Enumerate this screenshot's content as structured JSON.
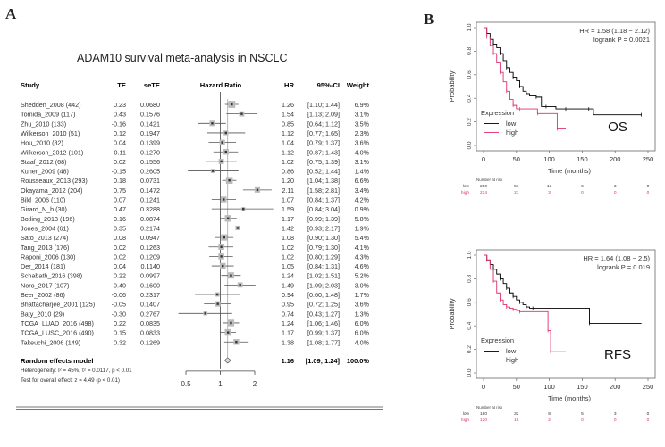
{
  "panels": {
    "a_label": "A",
    "b_label": "B"
  },
  "chart_data": [
    {
      "type": "forest",
      "title": "ADAM10  survival meta-analysis in NSCLC",
      "columns": {
        "study": "Study",
        "te": "TE",
        "sete": "seTE",
        "plot": "Hazard Ratio",
        "hr": "HR",
        "ci": "95%-CI",
        "weight": "Weight"
      },
      "xscale": "log",
      "xlim": [
        0.5,
        2
      ],
      "xticks": [
        "0.5",
        "1",
        "2"
      ],
      "studies": [
        {
          "study": "Shedden_2008 (442)",
          "te": "0.23",
          "sete": "0.0680",
          "hr": 1.26,
          "lo": 1.1,
          "hi": 1.44,
          "ci": "[1.10; 1.44]",
          "weight": "6.9%"
        },
        {
          "study": "Tomida_2009 (117)",
          "te": "0.43",
          "sete": "0.1576",
          "hr": 1.54,
          "lo": 1.13,
          "hi": 2.09,
          "ci": "[1.13; 2.09]",
          "weight": "3.1%"
        },
        {
          "study": "Zhu_2010 (133)",
          "te": "-0.16",
          "sete": "0.1421",
          "hr": 0.85,
          "lo": 0.64,
          "hi": 1.12,
          "ci": "[0.64; 1.12]",
          "weight": "3.5%"
        },
        {
          "study": "Wilkerson_2010 (51)",
          "te": "0.12",
          "sete": "0.1947",
          "hr": 1.12,
          "lo": 0.77,
          "hi": 1.65,
          "ci": "[0.77; 1.65]",
          "weight": "2.3%"
        },
        {
          "study": "Hou_2010 (82)",
          "te": "0.04",
          "sete": "0.1399",
          "hr": 1.04,
          "lo": 0.79,
          "hi": 1.37,
          "ci": "[0.79; 1.37]",
          "weight": "3.6%"
        },
        {
          "study": "Wilkerson_2012 (101)",
          "te": "0.11",
          "sete": "0.1270",
          "hr": 1.12,
          "lo": 0.87,
          "hi": 1.43,
          "ci": "[0.87; 1.43]",
          "weight": "4.0%"
        },
        {
          "study": "Staaf_2012 (68)",
          "te": "0.02",
          "sete": "0.1556",
          "hr": 1.02,
          "lo": 0.75,
          "hi": 1.39,
          "ci": "[0.75; 1.39]",
          "weight": "3.1%"
        },
        {
          "study": "Kuner_2009 (48)",
          "te": "-0.15",
          "sete": "0.2605",
          "hr": 0.86,
          "lo": 0.52,
          "hi": 1.44,
          "ci": "[0.52; 1.44]",
          "weight": "1.4%"
        },
        {
          "study": "Rousseaux_2013 (293)",
          "te": "0.18",
          "sete": "0.0731",
          "hr": 1.2,
          "lo": 1.04,
          "hi": 1.38,
          "ci": "[1.04; 1.38]",
          "weight": "6.6%"
        },
        {
          "study": "Okayama_2012 (204)",
          "te": "0.75",
          "sete": "0.1472",
          "hr": 2.11,
          "lo": 1.58,
          "hi": 2.81,
          "ci": "[1.58; 2.81]",
          "weight": "3.4%"
        },
        {
          "study": "Bild_2006 (110)",
          "te": "0.07",
          "sete": "0.1241",
          "hr": 1.07,
          "lo": 0.84,
          "hi": 1.37,
          "ci": "[0.84; 1.37]",
          "weight": "4.2%"
        },
        {
          "study": "Girard_N_b (30)",
          "te": "0.47",
          "sete": "0.3288",
          "hr": 1.59,
          "lo": 0.84,
          "hi": 3.04,
          "ci": "[0.84; 3.04]",
          "weight": "0.9%"
        },
        {
          "study": "Botling_2013 (196)",
          "te": "0.16",
          "sete": "0.0874",
          "hr": 1.17,
          "lo": 0.99,
          "hi": 1.39,
          "ci": "[0.99; 1.39]",
          "weight": "5.8%"
        },
        {
          "study": "Jones_2004 (61)",
          "te": "0.35",
          "sete": "0.2174",
          "hr": 1.42,
          "lo": 0.93,
          "hi": 2.17,
          "ci": "[0.93; 2.17]",
          "weight": "1.9%"
        },
        {
          "study": "Sato_2013 (274)",
          "te": "0.08",
          "sete": "0.0947",
          "hr": 1.08,
          "lo": 0.9,
          "hi": 1.3,
          "ci": "[0.90; 1.30]",
          "weight": "5.4%"
        },
        {
          "study": "Tang_2013 (176)",
          "te": "0.02",
          "sete": "0.1263",
          "hr": 1.02,
          "lo": 0.79,
          "hi": 1.3,
          "ci": "[0.79; 1.30]",
          "weight": "4.1%"
        },
        {
          "study": "Raponi_2006 (130)",
          "te": "0.02",
          "sete": "0.1209",
          "hr": 1.02,
          "lo": 0.8,
          "hi": 1.29,
          "ci": "[0.80; 1.29]",
          "weight": "4.3%"
        },
        {
          "study": "Der_2014 (181)",
          "te": "0.04",
          "sete": "0.1140",
          "hr": 1.05,
          "lo": 0.84,
          "hi": 1.31,
          "ci": "[0.84; 1.31]",
          "weight": "4.6%"
        },
        {
          "study": "Schabath_2016 (398)",
          "te": "0.22",
          "sete": "0.0997",
          "hr": 1.24,
          "lo": 1.02,
          "hi": 1.51,
          "ci": "[1.02; 1.51]",
          "weight": "5.2%"
        },
        {
          "study": "Noro_2017 (107)",
          "te": "0.40",
          "sete": "0.1600",
          "hr": 1.49,
          "lo": 1.09,
          "hi": 2.03,
          "ci": "[1.09; 2.03]",
          "weight": "3.0%"
        },
        {
          "study": "Beer_2002 (86)",
          "te": "-0.06",
          "sete": "0.2317",
          "hr": 0.94,
          "lo": 0.6,
          "hi": 1.48,
          "ci": "[0.60; 1.48]",
          "weight": "1.7%"
        },
        {
          "study": "Bhattacharjee_2001 (125)",
          "te": "-0.05",
          "sete": "0.1407",
          "hr": 0.95,
          "lo": 0.72,
          "hi": 1.25,
          "ci": "[0.72; 1.25]",
          "weight": "3.6%"
        },
        {
          "study": "Baty_2010 (29)",
          "te": "-0.30",
          "sete": "0.2767",
          "hr": 0.74,
          "lo": 0.43,
          "hi": 1.27,
          "ci": "[0.43; 1.27]",
          "weight": "1.3%"
        },
        {
          "study": "TCGA_LUAD_2016 (498)",
          "te": "0.22",
          "sete": "0.0835",
          "hr": 1.24,
          "lo": 1.06,
          "hi": 1.46,
          "ci": "[1.06; 1.46]",
          "weight": "6.0%"
        },
        {
          "study": "TCGA_LUSC_2016 (490)",
          "te": "0.15",
          "sete": "0.0833",
          "hr": 1.17,
          "lo": 0.99,
          "hi": 1.37,
          "ci": "[0.99; 1.37]",
          "weight": "6.0%"
        },
        {
          "study": "Takeuchi_2006 (149)",
          "te": "0.32",
          "sete": "0.1269",
          "hr": 1.38,
          "lo": 1.08,
          "hi": 1.77,
          "ci": "[1.08; 1.77]",
          "weight": "4.0%"
        }
      ],
      "summary": {
        "label": "Random effects model",
        "hr": 1.16,
        "lo": 1.09,
        "hi": 1.24,
        "hr_text": "1.16",
        "ci": "[1.09; 1.24]",
        "weight": "100.0%"
      },
      "heterogeneity": "Heterogeneity: I² = 45%, τ² = 0.0117, p < 0.01",
      "overall_test": "Test for overall effect: z = 4.49 (p < 0.01)"
    },
    {
      "type": "line",
      "subtype": "kaplan-meier",
      "label": "OS",
      "hr_text": "HR = 1.58 (1.18 − 2.12)",
      "logrank_text": "logrank P = 0.0021",
      "xlabel": "Time (months)",
      "ylabel": "Probability",
      "xlim": [
        0,
        250
      ],
      "ylim": [
        0,
        1
      ],
      "xticks": [
        "0",
        "50",
        "100",
        "150",
        "200",
        "250"
      ],
      "yticks": [
        "0.0",
        "0.2",
        "0.4",
        "0.6",
        "0.8",
        "1.0"
      ],
      "legend": {
        "title": "Expression",
        "position": "bottom-left",
        "entries": [
          "low",
          "high"
        ]
      },
      "colors": {
        "low": "#000000",
        "high": "#e0306a"
      },
      "series": [
        {
          "name": "low",
          "x": [
            0,
            5,
            10,
            15,
            20,
            25,
            30,
            35,
            40,
            45,
            50,
            55,
            60,
            65,
            70,
            80,
            88,
            95,
            110,
            125,
            140,
            160,
            167,
            240
          ],
          "y": [
            1.0,
            0.95,
            0.9,
            0.86,
            0.83,
            0.78,
            0.72,
            0.66,
            0.62,
            0.58,
            0.55,
            0.5,
            0.46,
            0.44,
            0.42,
            0.41,
            0.33,
            0.33,
            0.31,
            0.31,
            0.31,
            0.31,
            0.26,
            0.26
          ]
        },
        {
          "name": "high",
          "x": [
            0,
            5,
            10,
            15,
            20,
            25,
            30,
            35,
            40,
            45,
            50,
            55,
            80,
            82,
            100,
            112,
            125
          ],
          "y": [
            1.0,
            0.92,
            0.85,
            0.78,
            0.7,
            0.62,
            0.54,
            0.46,
            0.39,
            0.34,
            0.31,
            0.31,
            0.31,
            0.27,
            0.27,
            0.14,
            0.14
          ]
        }
      ],
      "risk_table": {
        "title": "Number at risk",
        "times": [
          0,
          50,
          100,
          150,
          200,
          250
        ],
        "rows": [
          {
            "name": "low",
            "values": [
              "290",
              "51",
              "13",
              "6",
              "3",
              "0"
            ]
          },
          {
            "name": "high",
            "values": [
              "214",
              "21",
              "3",
              "0",
              "0",
              "0"
            ]
          }
        ]
      }
    },
    {
      "type": "line",
      "subtype": "kaplan-meier",
      "label": "RFS",
      "hr_text": "HR = 1.64 (1.08 − 2.5)",
      "logrank_text": "logrank P = 0.019",
      "xlabel": "Time (months)",
      "ylabel": "Probability",
      "xlim": [
        0,
        250
      ],
      "ylim": [
        0,
        1
      ],
      "xticks": [
        "0",
        "50",
        "100",
        "150",
        "200",
        "250"
      ],
      "yticks": [
        "0.0",
        "0.2",
        "0.4",
        "0.6",
        "0.8",
        "1.0"
      ],
      "legend": {
        "title": "Expression",
        "position": "bottom-left",
        "entries": [
          "low",
          "high"
        ]
      },
      "colors": {
        "low": "#000000",
        "high": "#e0306a"
      },
      "series": [
        {
          "name": "low",
          "x": [
            0,
            5,
            10,
            15,
            20,
            25,
            30,
            35,
            40,
            45,
            50,
            55,
            60,
            65,
            70,
            75,
            160,
            161,
            240
          ],
          "y": [
            1.0,
            0.96,
            0.92,
            0.88,
            0.84,
            0.8,
            0.76,
            0.72,
            0.68,
            0.65,
            0.62,
            0.6,
            0.58,
            0.56,
            0.55,
            0.55,
            0.55,
            0.42,
            0.42
          ]
        },
        {
          "name": "high",
          "x": [
            0,
            5,
            10,
            15,
            20,
            25,
            30,
            35,
            40,
            45,
            50,
            55,
            95,
            98,
            100,
            102,
            125
          ],
          "y": [
            1.0,
            0.96,
            0.88,
            0.78,
            0.68,
            0.62,
            0.58,
            0.56,
            0.55,
            0.54,
            0.53,
            0.52,
            0.52,
            0.36,
            0.36,
            0.18,
            0.18
          ]
        }
      ],
      "risk_table": {
        "title": "Number at risk",
        "times": [
          0,
          50,
          100,
          150,
          200,
          250
        ],
        "rows": [
          {
            "name": "low",
            "values": [
              "180",
              "32",
              "8",
              "5",
              "3",
              "0"
            ]
          },
          {
            "name": "high",
            "values": [
              "120",
              "16",
              "2",
              "0",
              "0",
              "0"
            ]
          }
        ]
      }
    }
  ]
}
